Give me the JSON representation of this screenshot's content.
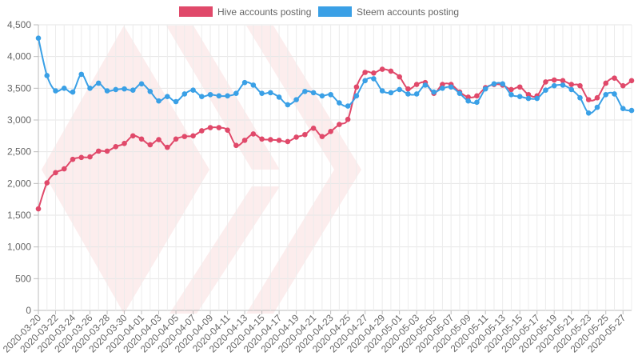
{
  "chart_data": {
    "type": "line",
    "title": "",
    "xlabel": "",
    "ylabel": "",
    "ylim": [
      0,
      4500
    ],
    "y_ticks": [
      "0",
      "500",
      "1,000",
      "1,500",
      "2,000",
      "2,500",
      "3,000",
      "3,500",
      "4,000",
      "4,500"
    ],
    "grid": true,
    "legend_position": "top-center",
    "start_date": "2020-03-20",
    "x_tick_labels": [
      "2020-03-20",
      "2020-03-22",
      "2020-03-24",
      "2020-03-26",
      "2020-03-28",
      "2020-03-30",
      "2020-04-01",
      "2020-04-03",
      "2020-04-05",
      "2020-04-07",
      "2020-04-09",
      "2020-04-11",
      "2020-04-13",
      "2020-04-15",
      "2020-04-17",
      "2020-04-19",
      "2020-04-21",
      "2020-04-23",
      "2020-04-25",
      "2020-04-27",
      "2020-04-29",
      "2020-05-01",
      "2020-05-03",
      "2020-05-05",
      "2020-05-07",
      "2020-05-09",
      "2020-05-11",
      "2020-05-13",
      "2020-05-15",
      "2020-05-17",
      "2020-05-19",
      "2020-05-21",
      "2020-05-23",
      "2020-05-25",
      "2020-05-27"
    ],
    "series": [
      {
        "name": "Hive accounts posting",
        "color": "#e0496a",
        "values": [
          1600,
          2010,
          2170,
          2230,
          2380,
          2410,
          2420,
          2510,
          2510,
          2580,
          2630,
          2750,
          2700,
          2610,
          2690,
          2570,
          2700,
          2740,
          2750,
          2830,
          2880,
          2880,
          2840,
          2600,
          2680,
          2780,
          2700,
          2690,
          2680,
          2660,
          2730,
          2770,
          2870,
          2740,
          2820,
          2930,
          3010,
          3520,
          3750,
          3740,
          3800,
          3770,
          3680,
          3490,
          3560,
          3590,
          3420,
          3560,
          3560,
          3440,
          3360,
          3380,
          3510,
          3560,
          3550,
          3480,
          3520,
          3400,
          3380,
          3600,
          3630,
          3620,
          3560,
          3540,
          3320,
          3350,
          3580,
          3660,
          3540,
          3620
        ]
      },
      {
        "name": "Steem accounts posting",
        "color": "#3aa0e6",
        "values": [
          4290,
          3700,
          3460,
          3500,
          3440,
          3720,
          3500,
          3580,
          3460,
          3480,
          3490,
          3470,
          3570,
          3450,
          3300,
          3370,
          3290,
          3410,
          3470,
          3370,
          3400,
          3380,
          3380,
          3420,
          3590,
          3550,
          3420,
          3430,
          3360,
          3240,
          3320,
          3450,
          3430,
          3380,
          3400,
          3270,
          3220,
          3380,
          3620,
          3650,
          3460,
          3430,
          3480,
          3410,
          3410,
          3550,
          3440,
          3500,
          3520,
          3420,
          3300,
          3280,
          3490,
          3570,
          3570,
          3400,
          3370,
          3340,
          3340,
          3470,
          3540,
          3550,
          3480,
          3350,
          3110,
          3200,
          3400,
          3410,
          3180,
          3150
        ]
      }
    ]
  }
}
